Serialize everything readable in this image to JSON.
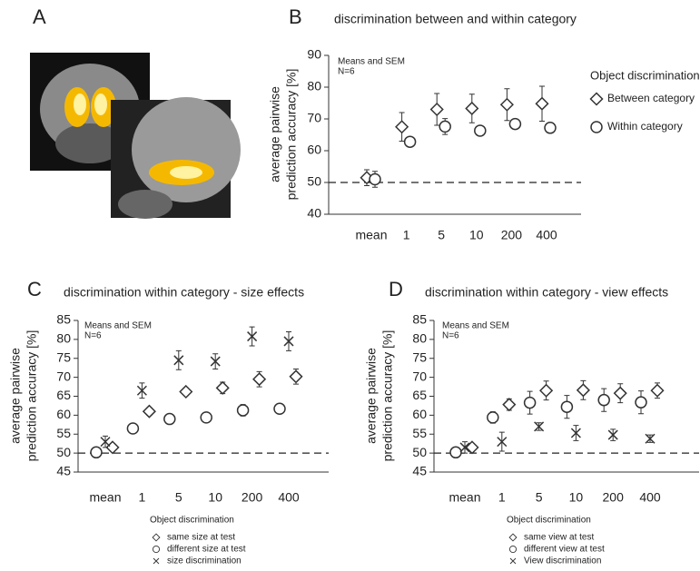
{
  "panel_labels": [
    "A",
    "B",
    "C",
    "D"
  ],
  "chart_data": [
    {
      "type": "errorbar",
      "title": "discrimination between and within category",
      "ylabel": [
        "average pairwise",
        "prediction accuracy [%]"
      ],
      "annotations": [
        "Means and SEM",
        "N=6"
      ],
      "categories": [
        "mean",
        "1",
        "5",
        "10",
        "200",
        "400"
      ],
      "ylim": [
        40,
        90
      ],
      "yticks": [
        40,
        50,
        60,
        70,
        80,
        90
      ],
      "reference_line": 50,
      "legend_title": "Object discrimination",
      "legend_position": "right",
      "series": [
        {
          "name": "Between category",
          "marker": "diamond",
          "color": "#333333",
          "values": [
            51.5,
            67.5,
            73,
            73.3,
            74.5,
            74.8
          ],
          "errors": [
            2.5,
            4.5,
            5,
            4.5,
            5,
            5.5
          ]
        },
        {
          "name": "Within category",
          "marker": "circle",
          "color": "#333333",
          "values": [
            51,
            62.8,
            67.6,
            66.3,
            68.4,
            67.2
          ],
          "errors": [
            2.5,
            1,
            2.5,
            1.5,
            1,
            1
          ]
        }
      ]
    },
    {
      "type": "errorbar",
      "title": "discrimination within category - size effects",
      "ylabel": [
        "average pairwise",
        "prediction accuracy [%]"
      ],
      "annotations": [
        "Means and SEM",
        "N=6"
      ],
      "categories": [
        "mean",
        "1",
        "5",
        "10",
        "200",
        "400"
      ],
      "ylim": [
        45,
        85
      ],
      "yticks": [
        45,
        50,
        55,
        60,
        65,
        70,
        75,
        80,
        85
      ],
      "reference_line": 50,
      "legend_title": "Object discrimination",
      "legend_position": "bottom",
      "series": [
        {
          "name": "same size at test",
          "marker": "diamond",
          "color": "#333333",
          "values": [
            51.5,
            61,
            66.2,
            67.2,
            69.5,
            70.2
          ],
          "errors": [
            1,
            1,
            1,
            1.5,
            2,
            2
          ]
        },
        {
          "name": "different size at test",
          "marker": "circle",
          "color": "#333333",
          "values": [
            50.2,
            56.5,
            59,
            59.4,
            61.3,
            61.7
          ],
          "errors": [
            1,
            1,
            0.5,
            0.5,
            1.5,
            0.5
          ]
        },
        {
          "name": "size discrimination",
          "marker": "x",
          "color": "#333333",
          "values": [
            53,
            66.5,
            74.5,
            74.2,
            80.8,
            79.5
          ],
          "errors": [
            1.5,
            2,
            2.5,
            2,
            2.5,
            2.5
          ]
        }
      ]
    },
    {
      "type": "errorbar",
      "title": "discrimination within category - view effects",
      "ylabel": [
        "average pairwise",
        "prediction accuracy [%]"
      ],
      "annotations": [
        "Means and SEM",
        "N=6"
      ],
      "categories": [
        "mean",
        "1",
        "5",
        "10",
        "200",
        "400"
      ],
      "ylim": [
        45,
        85
      ],
      "yticks": [
        45,
        50,
        55,
        60,
        65,
        70,
        75,
        80,
        85
      ],
      "reference_line": 50,
      "legend_title": "Object discrimination",
      "legend_position": "bottom",
      "series": [
        {
          "name": "same view at test",
          "marker": "diamond",
          "color": "#333333",
          "values": [
            51.5,
            62.8,
            66.5,
            66.6,
            65.8,
            66.5
          ],
          "errors": [
            1,
            1.5,
            2.5,
            2.5,
            2.5,
            2
          ]
        },
        {
          "name": "different view at test",
          "marker": "circle",
          "color": "#333333",
          "values": [
            50.2,
            59.4,
            63.3,
            62.2,
            64,
            63.4
          ],
          "errors": [
            1,
            1.5,
            3,
            3,
            3,
            3
          ]
        },
        {
          "name": "View discrimination",
          "marker": "x",
          "color": "#333333",
          "values": [
            51.5,
            53,
            57,
            55.3,
            54.8,
            53.8
          ],
          "errors": [
            1.5,
            2.5,
            1,
            2,
            1.5,
            1
          ]
        }
      ]
    }
  ]
}
